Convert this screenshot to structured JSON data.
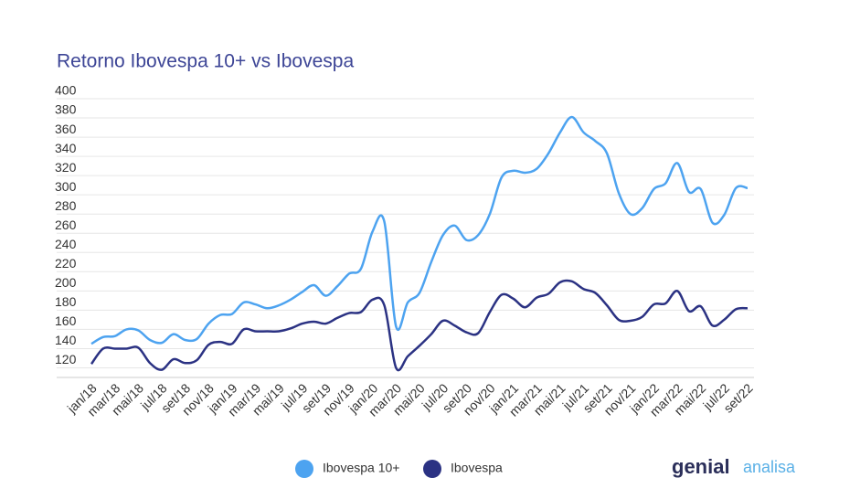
{
  "chart_data": {
    "type": "line",
    "title": "Retorno Ibovespa 10+ vs Ibovespa",
    "categories": [
      "jan/18",
      null,
      "mar/18",
      null,
      "mai/18",
      null,
      "jul/18",
      null,
      "set/18",
      null,
      "nov/18",
      null,
      "jan/19",
      null,
      "mar/19",
      null,
      "mai/19",
      null,
      "jul/19",
      null,
      "set/19",
      null,
      "nov/19",
      null,
      "jan/20",
      null,
      "mar/20",
      null,
      "mai/20",
      null,
      "jul/20",
      null,
      "set/20",
      null,
      "nov/20",
      null,
      "jan/21",
      null,
      "mar/21",
      null,
      "mai/21",
      null,
      "jul/21",
      null,
      "set/21",
      null,
      "nov/21",
      null,
      "jan/22",
      null,
      "mar/22",
      null,
      "mai/22",
      null,
      "jul/22",
      null,
      "set/22"
    ],
    "series": [
      {
        "name": "Ibovespa 10+",
        "color": "#4da3f0",
        "values": [
          145,
          152,
          153,
          160,
          159,
          149,
          146,
          155,
          149,
          150,
          166,
          175,
          176,
          188,
          186,
          182,
          185,
          191,
          199,
          206,
          195,
          205,
          218,
          223,
          262,
          272,
          163,
          188,
          198,
          230,
          258,
          268,
          253,
          258,
          280,
          318,
          325,
          323,
          327,
          343,
          365,
          381,
          365,
          356,
          343,
          302,
          280,
          286,
          306,
          312,
          333,
          303,
          306,
          271,
          279,
          307,
          307
        ]
      },
      {
        "name": "Ibovespa",
        "color": "#2b3283",
        "values": [
          124,
          140,
          140,
          140,
          141,
          125,
          118,
          129,
          125,
          128,
          144,
          147,
          145,
          160,
          158,
          158,
          158,
          161,
          166,
          168,
          166,
          172,
          177,
          178,
          191,
          185,
          120,
          132,
          143,
          155,
          169,
          164,
          157,
          156,
          178,
          196,
          192,
          183,
          193,
          197,
          209,
          210,
          202,
          198,
          185,
          170,
          169,
          173,
          186,
          187,
          200,
          179,
          184,
          164,
          170,
          181,
          182
        ]
      }
    ],
    "ylim": [
      110,
      400
    ],
    "yticks": [
      120,
      140,
      160,
      180,
      200,
      220,
      240,
      260,
      280,
      300,
      320,
      340,
      360,
      380,
      400
    ],
    "grid": true,
    "legend": "bottom",
    "logo": {
      "brand": "genial",
      "suffix": "analisa"
    }
  }
}
